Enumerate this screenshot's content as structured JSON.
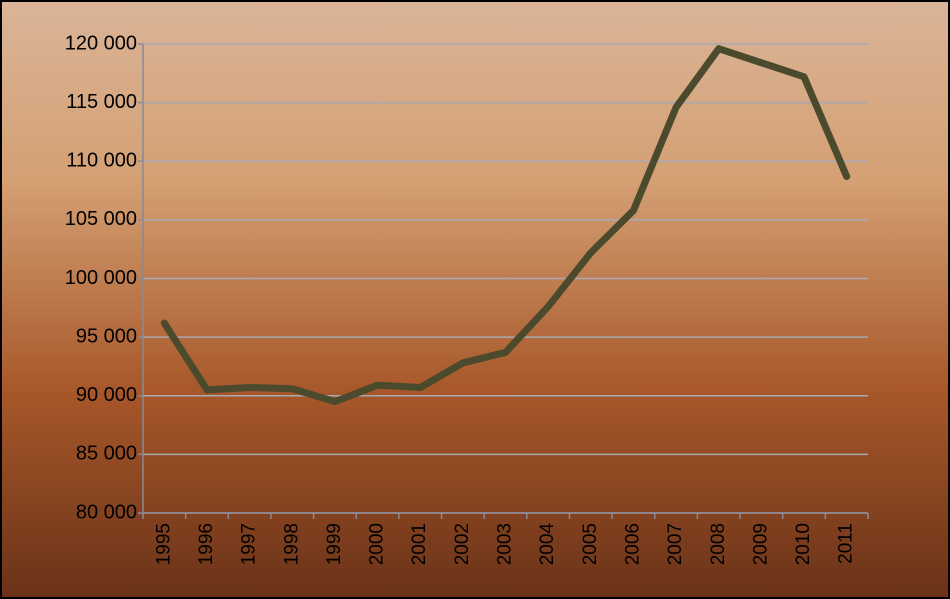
{
  "chart_data": {
    "type": "line",
    "categories": [
      "1995",
      "1996",
      "1997",
      "1998",
      "1999",
      "2000",
      "2001",
      "2002",
      "2003",
      "2004",
      "2005",
      "2006",
      "2007",
      "2008",
      "2009",
      "2010",
      "2011"
    ],
    "values": [
      96200,
      90500,
      90700,
      90600,
      89500,
      90900,
      90700,
      92800,
      93700,
      97600,
      102200,
      105800,
      114600,
      119600,
      118400,
      117200,
      108700
    ],
    "color": "#4b4a2c",
    "ylim": [
      80000,
      120000
    ],
    "yticks": [
      {
        "value": 80000,
        "label": "80 000"
      },
      {
        "value": 85000,
        "label": "85 000"
      },
      {
        "value": 90000,
        "label": "90 000"
      },
      {
        "value": 95000,
        "label": "95 000"
      },
      {
        "value": 100000,
        "label": "100 000"
      },
      {
        "value": 105000,
        "label": "105 000"
      },
      {
        "value": 110000,
        "label": "110 000"
      },
      {
        "value": 115000,
        "label": "115 000"
      },
      {
        "value": 120000,
        "label": "120 000"
      }
    ],
    "grid": true
  }
}
